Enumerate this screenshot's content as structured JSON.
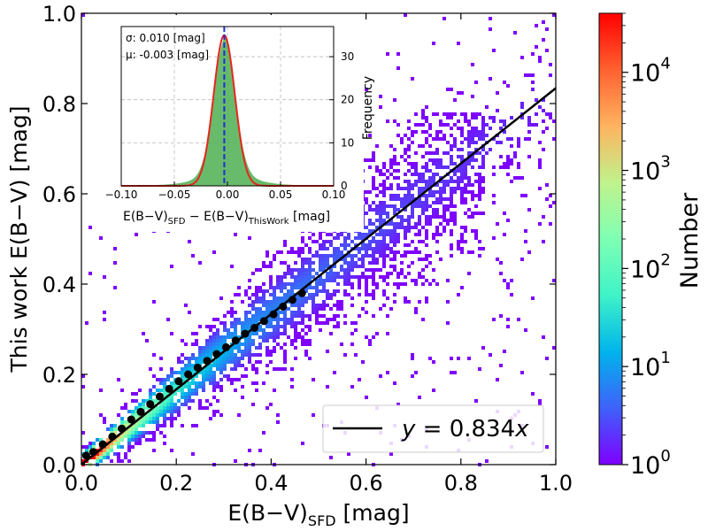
{
  "chart_data": [
    {
      "type": "heatmap",
      "xlabel_main": "E(B−V)",
      "xlabel_sub": "SFD",
      "xlabel_unit": " [mag]",
      "ylabel": "This work E(B−V) [mag]",
      "xlim": [
        0,
        1.0
      ],
      "ylim": [
        0,
        1.0
      ],
      "x_ticks": [
        "0.0",
        "0.2",
        "0.4",
        "0.6",
        "0.8",
        "1.0"
      ],
      "y_ticks": [
        "0.0",
        "0.2",
        "0.4",
        "0.6",
        "0.8",
        "1.0"
      ],
      "fit_line": {
        "slope": 0.834,
        "label_y": "y",
        "label_eq": " = 0.834",
        "label_x": "x",
        "color": "#000000"
      },
      "binned_medians": {
        "x": [
          0.01,
          0.025,
          0.045,
          0.065,
          0.085,
          0.105,
          0.125,
          0.145,
          0.165,
          0.185,
          0.205,
          0.225,
          0.245,
          0.265,
          0.285,
          0.305,
          0.325,
          0.345,
          0.365,
          0.385,
          0.405,
          0.425,
          0.445,
          0.465
        ],
        "y": [
          0.02,
          0.028,
          0.045,
          0.062,
          0.08,
          0.1,
          0.117,
          0.134,
          0.151,
          0.168,
          0.185,
          0.2,
          0.215,
          0.23,
          0.245,
          0.26,
          0.275,
          0.29,
          0.303,
          0.318,
          0.333,
          0.35,
          0.365,
          0.38
        ]
      },
      "colorbar": {
        "label": "Number",
        "scale": "log",
        "range": [
          1,
          40000
        ],
        "tick_base": "10",
        "tick_exponents": [
          "0",
          "1",
          "2",
          "3",
          "4"
        ],
        "colormap": [
          "#7f00ff",
          "#3f61fa",
          "#00b4eb",
          "#3ff3c7",
          "#7fffb4",
          "#c0f38c",
          "#ffb360",
          "#ff6130",
          "#ff0000"
        ]
      },
      "grid": false
    },
    {
      "type": "area",
      "subtitle": "inset histogram",
      "annotation_sigma": "σ: 0.010 [mag]",
      "annotation_mu": "μ: -0.003 [mag]",
      "xlabel_a": "E(B−V)",
      "xlabel_a_sub": "SFD",
      "xlabel_mid": "  − E(B−V)",
      "xlabel_b_sub": "ThisWork",
      "xlabel_unit": " [mag]",
      "ylabel": "Frequency",
      "xlim": [
        -0.1,
        0.1
      ],
      "ylim": [
        0,
        37
      ],
      "x_ticks": [
        "−0.10",
        "−0.05",
        "0.00",
        "0.05",
        "0.10"
      ],
      "x_tick_values": [
        -0.1,
        -0.05,
        0,
        0.05,
        0.1
      ],
      "y_ticks": [
        "0",
        "10",
        "20",
        "30"
      ],
      "y_tick_values": [
        0,
        10,
        20,
        30
      ],
      "histogram_peak": 35,
      "gaussian": {
        "mu": -0.003,
        "sigma": 0.01,
        "peak": 35
      },
      "median_line": -0.003,
      "grid": true,
      "colors": {
        "hist": "#4caf50",
        "fit": "#e8261e",
        "median": "#1f2ed6"
      }
    }
  ]
}
